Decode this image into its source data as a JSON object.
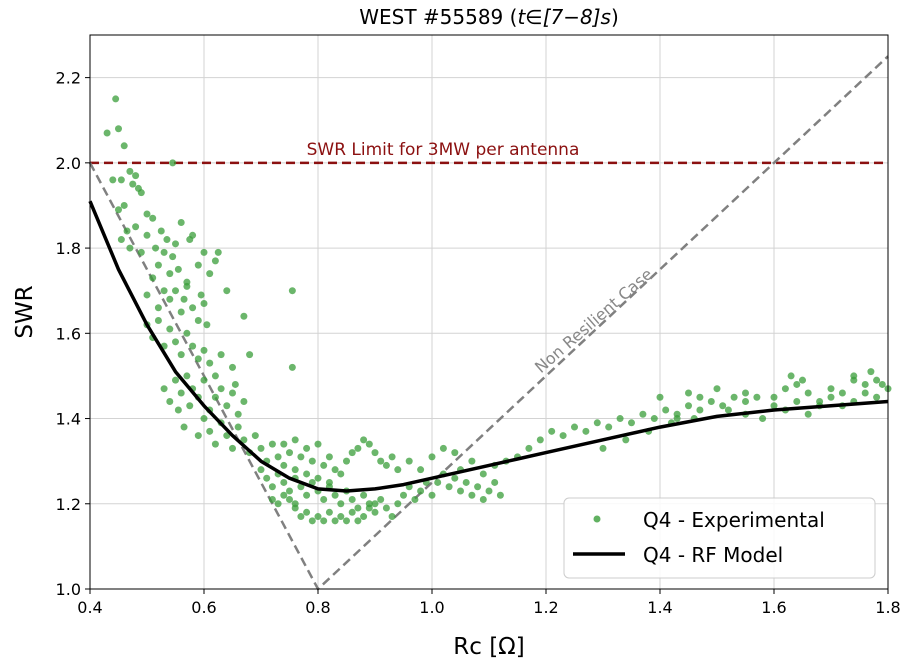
{
  "chart_data": {
    "type": "scatter",
    "title": "WEST #55589 (",
    "title_math": "t∈[7−8]s",
    "title_suffix": ")",
    "xlabel": "Rc [Ω]",
    "ylabel": "SWR",
    "xlim": [
      0.4,
      1.8
    ],
    "ylim": [
      1.0,
      2.3
    ],
    "xticks": [
      "0.4",
      "0.6",
      "0.8",
      "1.0",
      "1.2",
      "1.4",
      "1.6",
      "1.8"
    ],
    "yticks": [
      "1.0",
      "1.2",
      "1.4",
      "1.6",
      "1.8",
      "2.0",
      "2.2"
    ],
    "grid": true,
    "legend_position": "bottom-right",
    "colors": {
      "experimental": "#3a9e3a",
      "model": "#000000",
      "limit": "#8b1010",
      "non_resilient": "#808080"
    },
    "annotations": {
      "limit_label": "SWR Limit for 3MW per antenna",
      "non_resilient_label": "Non Resilient Case"
    },
    "limit_line": {
      "y": 2.0
    },
    "non_resilient_line": [
      [
        0.4,
        2.0
      ],
      [
        0.8,
        1.0
      ],
      [
        1.8,
        2.25
      ]
    ],
    "series": [
      {
        "name": "Q4 - Experimental",
        "kind": "scatter",
        "points": [
          [
            0.43,
            2.07
          ],
          [
            0.445,
            2.15
          ],
          [
            0.45,
            2.08
          ],
          [
            0.46,
            2.04
          ],
          [
            0.545,
            2.0
          ],
          [
            0.44,
            1.96
          ],
          [
            0.45,
            1.89
          ],
          [
            0.455,
            1.96
          ],
          [
            0.46,
            1.9
          ],
          [
            0.47,
            1.98
          ],
          [
            0.475,
            1.95
          ],
          [
            0.48,
            1.97
          ],
          [
            0.485,
            1.94
          ],
          [
            0.49,
            1.93
          ],
          [
            0.5,
            1.88
          ],
          [
            0.455,
            1.82
          ],
          [
            0.465,
            1.84
          ],
          [
            0.47,
            1.8
          ],
          [
            0.48,
            1.85
          ],
          [
            0.49,
            1.79
          ],
          [
            0.5,
            1.83
          ],
          [
            0.51,
            1.87
          ],
          [
            0.515,
            1.8
          ],
          [
            0.52,
            1.76
          ],
          [
            0.525,
            1.84
          ],
          [
            0.53,
            1.79
          ],
          [
            0.535,
            1.82
          ],
          [
            0.54,
            1.74
          ],
          [
            0.545,
            1.78
          ],
          [
            0.55,
            1.81
          ],
          [
            0.555,
            1.75
          ],
          [
            0.56,
            1.86
          ],
          [
            0.57,
            1.72
          ],
          [
            0.575,
            1.82
          ],
          [
            0.58,
            1.83
          ],
          [
            0.59,
            1.76
          ],
          [
            0.6,
            1.79
          ],
          [
            0.61,
            1.74
          ],
          [
            0.62,
            1.77
          ],
          [
            0.625,
            1.79
          ],
          [
            0.5,
            1.69
          ],
          [
            0.51,
            1.73
          ],
          [
            0.52,
            1.66
          ],
          [
            0.53,
            1.7
          ],
          [
            0.54,
            1.68
          ],
          [
            0.55,
            1.7
          ],
          [
            0.56,
            1.65
          ],
          [
            0.565,
            1.68
          ],
          [
            0.57,
            1.71
          ],
          [
            0.58,
            1.66
          ],
          [
            0.59,
            1.63
          ],
          [
            0.595,
            1.69
          ],
          [
            0.6,
            1.67
          ],
          [
            0.605,
            1.62
          ],
          [
            0.64,
            1.7
          ],
          [
            0.5,
            1.62
          ],
          [
            0.51,
            1.59
          ],
          [
            0.52,
            1.63
          ],
          [
            0.53,
            1.57
          ],
          [
            0.54,
            1.61
          ],
          [
            0.55,
            1.58
          ],
          [
            0.56,
            1.55
          ],
          [
            0.57,
            1.6
          ],
          [
            0.58,
            1.57
          ],
          [
            0.59,
            1.54
          ],
          [
            0.6,
            1.56
          ],
          [
            0.61,
            1.53
          ],
          [
            0.62,
            1.5
          ],
          [
            0.63,
            1.55
          ],
          [
            0.65,
            1.52
          ],
          [
            0.67,
            1.64
          ],
          [
            0.68,
            1.55
          ],
          [
            0.755,
            1.7
          ],
          [
            0.755,
            1.52
          ],
          [
            0.53,
            1.47
          ],
          [
            0.54,
            1.44
          ],
          [
            0.55,
            1.49
          ],
          [
            0.56,
            1.46
          ],
          [
            0.57,
            1.5
          ],
          [
            0.575,
            1.43
          ],
          [
            0.58,
            1.47
          ],
          [
            0.59,
            1.45
          ],
          [
            0.6,
            1.49
          ],
          [
            0.61,
            1.42
          ],
          [
            0.62,
            1.45
          ],
          [
            0.63,
            1.47
          ],
          [
            0.64,
            1.43
          ],
          [
            0.65,
            1.46
          ],
          [
            0.655,
            1.48
          ],
          [
            0.66,
            1.41
          ],
          [
            0.67,
            1.44
          ],
          [
            0.555,
            1.42
          ],
          [
            0.565,
            1.38
          ],
          [
            0.59,
            1.36
          ],
          [
            0.6,
            1.4
          ],
          [
            0.61,
            1.37
          ],
          [
            0.62,
            1.34
          ],
          [
            0.63,
            1.39
          ],
          [
            0.64,
            1.36
          ],
          [
            0.65,
            1.33
          ],
          [
            0.66,
            1.38
          ],
          [
            0.67,
            1.35
          ],
          [
            0.68,
            1.32
          ],
          [
            0.69,
            1.36
          ],
          [
            0.7,
            1.33
          ],
          [
            0.71,
            1.3
          ],
          [
            0.72,
            1.34
          ],
          [
            0.73,
            1.31
          ],
          [
            0.74,
            1.29
          ],
          [
            0.75,
            1.32
          ],
          [
            0.76,
            1.28
          ],
          [
            0.77,
            1.31
          ],
          [
            0.78,
            1.27
          ],
          [
            0.79,
            1.3
          ],
          [
            0.8,
            1.26
          ],
          [
            0.81,
            1.29
          ],
          [
            0.82,
            1.25
          ],
          [
            0.83,
            1.28
          ],
          [
            0.84,
            1.27
          ],
          [
            0.85,
            1.3
          ],
          [
            0.86,
            1.32
          ],
          [
            0.87,
            1.33
          ],
          [
            0.88,
            1.35
          ],
          [
            0.89,
            1.34
          ],
          [
            0.9,
            1.32
          ],
          [
            0.91,
            1.3
          ],
          [
            0.92,
            1.29
          ],
          [
            0.93,
            1.31
          ],
          [
            0.94,
            1.28
          ],
          [
            0.7,
            1.28
          ],
          [
            0.71,
            1.26
          ],
          [
            0.72,
            1.24
          ],
          [
            0.73,
            1.27
          ],
          [
            0.74,
            1.25
          ],
          [
            0.75,
            1.23
          ],
          [
            0.76,
            1.26
          ],
          [
            0.77,
            1.24
          ],
          [
            0.78,
            1.22
          ],
          [
            0.79,
            1.25
          ],
          [
            0.8,
            1.23
          ],
          [
            0.81,
            1.21
          ],
          [
            0.82,
            1.24
          ],
          [
            0.83,
            1.22
          ],
          [
            0.84,
            1.2
          ],
          [
            0.85,
            1.23
          ],
          [
            0.86,
            1.21
          ],
          [
            0.87,
            1.19
          ],
          [
            0.88,
            1.22
          ],
          [
            0.89,
            1.2
          ],
          [
            0.9,
            1.18
          ],
          [
            0.91,
            1.21
          ],
          [
            0.92,
            1.19
          ],
          [
            0.93,
            1.17
          ],
          [
            0.94,
            1.2
          ],
          [
            0.95,
            1.22
          ],
          [
            0.96,
            1.24
          ],
          [
            0.97,
            1.21
          ],
          [
            0.98,
            1.23
          ],
          [
            0.99,
            1.25
          ],
          [
            0.76,
            1.19
          ],
          [
            0.77,
            1.17
          ],
          [
            0.78,
            1.18
          ],
          [
            0.79,
            1.16
          ],
          [
            0.8,
            1.17
          ],
          [
            0.81,
            1.16
          ],
          [
            0.82,
            1.18
          ],
          [
            0.83,
            1.16
          ],
          [
            0.84,
            1.17
          ],
          [
            0.85,
            1.16
          ],
          [
            0.86,
            1.18
          ],
          [
            0.87,
            1.16
          ],
          [
            0.88,
            1.17
          ],
          [
            0.89,
            1.19
          ],
          [
            0.9,
            1.2
          ],
          [
            0.72,
            1.21
          ],
          [
            0.73,
            1.2
          ],
          [
            0.74,
            1.22
          ],
          [
            0.75,
            1.21
          ],
          [
            0.76,
            1.2
          ],
          [
            0.74,
            1.34
          ],
          [
            0.76,
            1.35
          ],
          [
            0.78,
            1.33
          ],
          [
            0.8,
            1.34
          ],
          [
            0.82,
            1.31
          ],
          [
            1.0,
            1.22
          ],
          [
            1.01,
            1.25
          ],
          [
            1.02,
            1.27
          ],
          [
            1.03,
            1.24
          ],
          [
            1.04,
            1.26
          ],
          [
            1.05,
            1.23
          ],
          [
            1.06,
            1.25
          ],
          [
            1.07,
            1.22
          ],
          [
            1.08,
            1.24
          ],
          [
            1.09,
            1.21
          ],
          [
            1.1,
            1.23
          ],
          [
            1.11,
            1.25
          ],
          [
            1.12,
            1.22
          ],
          [
            1.05,
            1.28
          ],
          [
            1.07,
            1.3
          ],
          [
            1.09,
            1.27
          ],
          [
            1.11,
            1.29
          ],
          [
            1.13,
            1.3
          ],
          [
            1.15,
            1.31
          ],
          [
            1.17,
            1.33
          ],
          [
            1.0,
            1.31
          ],
          [
            1.02,
            1.33
          ],
          [
            1.04,
            1.32
          ],
          [
            0.96,
            1.3
          ],
          [
            0.98,
            1.28
          ],
          [
            1.19,
            1.35
          ],
          [
            1.21,
            1.37
          ],
          [
            1.23,
            1.36
          ],
          [
            1.25,
            1.38
          ],
          [
            1.27,
            1.37
          ],
          [
            1.29,
            1.39
          ],
          [
            1.31,
            1.38
          ],
          [
            1.33,
            1.4
          ],
          [
            1.35,
            1.39
          ],
          [
            1.37,
            1.41
          ],
          [
            1.39,
            1.4
          ],
          [
            1.41,
            1.42
          ],
          [
            1.43,
            1.41
          ],
          [
            1.45,
            1.43
          ],
          [
            1.47,
            1.42
          ],
          [
            1.49,
            1.44
          ],
          [
            1.51,
            1.43
          ],
          [
            1.53,
            1.45
          ],
          [
            1.55,
            1.44
          ],
          [
            1.57,
            1.45
          ],
          [
            1.3,
            1.33
          ],
          [
            1.34,
            1.35
          ],
          [
            1.38,
            1.37
          ],
          [
            1.42,
            1.39
          ],
          [
            1.46,
            1.4
          ],
          [
            1.4,
            1.45
          ],
          [
            1.45,
            1.46
          ],
          [
            1.5,
            1.47
          ],
          [
            1.55,
            1.46
          ],
          [
            1.6,
            1.45
          ],
          [
            1.62,
            1.47
          ],
          [
            1.64,
            1.48
          ],
          [
            1.66,
            1.46
          ],
          [
            1.68,
            1.44
          ],
          [
            1.7,
            1.47
          ],
          [
            1.72,
            1.46
          ],
          [
            1.74,
            1.49
          ],
          [
            1.76,
            1.48
          ],
          [
            1.78,
            1.49
          ],
          [
            1.8,
            1.47
          ],
          [
            1.6,
            1.43
          ],
          [
            1.62,
            1.42
          ],
          [
            1.64,
            1.44
          ],
          [
            1.66,
            1.41
          ],
          [
            1.68,
            1.43
          ],
          [
            1.7,
            1.45
          ],
          [
            1.72,
            1.43
          ],
          [
            1.74,
            1.44
          ],
          [
            1.76,
            1.46
          ],
          [
            1.78,
            1.45
          ],
          [
            1.63,
            1.5
          ],
          [
            1.65,
            1.49
          ],
          [
            1.74,
            1.5
          ],
          [
            1.77,
            1.51
          ],
          [
            1.79,
            1.48
          ],
          [
            1.55,
            1.41
          ],
          [
            1.52,
            1.42
          ],
          [
            1.58,
            1.4
          ],
          [
            1.47,
            1.45
          ],
          [
            1.43,
            1.4
          ]
        ]
      },
      {
        "name": "Q4 - RF Model",
        "kind": "line",
        "x": [
          0.4,
          0.45,
          0.5,
          0.55,
          0.6,
          0.65,
          0.7,
          0.75,
          0.8,
          0.85,
          0.9,
          0.95,
          1.0,
          1.05,
          1.1,
          1.15,
          1.2,
          1.3,
          1.4,
          1.5,
          1.6,
          1.7,
          1.8
        ],
        "y": [
          1.91,
          1.75,
          1.62,
          1.51,
          1.43,
          1.36,
          1.3,
          1.26,
          1.235,
          1.23,
          1.235,
          1.245,
          1.26,
          1.275,
          1.29,
          1.305,
          1.32,
          1.35,
          1.38,
          1.405,
          1.42,
          1.43,
          1.44
        ]
      }
    ]
  }
}
